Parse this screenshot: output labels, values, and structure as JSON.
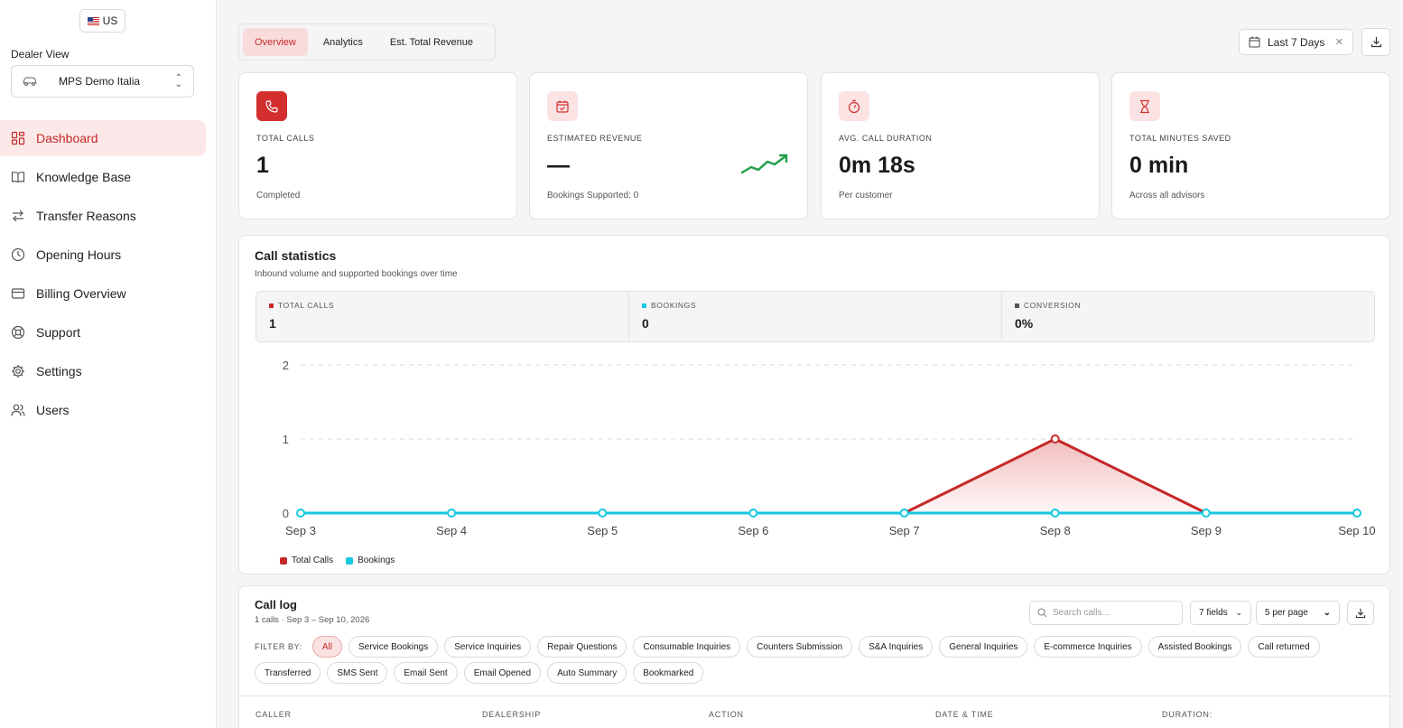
{
  "locale": {
    "label": "US"
  },
  "sidebar": {
    "dealer_label": "Dealer View",
    "dealer_name": "MPS Demo Italia",
    "items": [
      {
        "label": "Dashboard",
        "icon": "dashboard-icon"
      },
      {
        "label": "Knowledge Base",
        "icon": "book-icon"
      },
      {
        "label": "Transfer Reasons",
        "icon": "transfer-icon"
      },
      {
        "label": "Opening Hours",
        "icon": "clock-icon"
      },
      {
        "label": "Billing Overview",
        "icon": "card-icon"
      },
      {
        "label": "Support",
        "icon": "lifebuoy-icon"
      },
      {
        "label": "Settings",
        "icon": "gear-icon"
      },
      {
        "label": "Users",
        "icon": "users-icon"
      }
    ]
  },
  "tabs": [
    "Overview",
    "Analytics",
    "Est. Total Revenue"
  ],
  "date_range": "Last 7 Days",
  "stats": [
    {
      "label": "TOTAL CALLS",
      "value": "1",
      "sub": "Completed"
    },
    {
      "label": "ESTIMATED REVENUE",
      "value": "—",
      "sub": "Bookings Supported: 0"
    },
    {
      "label": "AVG. CALL DURATION",
      "value": "0m 18s",
      "sub": "Per customer"
    },
    {
      "label": "TOTAL MINUTES SAVED",
      "value": "0 min",
      "sub": "Across all advisors"
    }
  ],
  "call_stats": {
    "title": "Call statistics",
    "subtitle": "Inbound volume and supported bookings over time",
    "summary": [
      {
        "label": "TOTAL CALLS",
        "value": "1",
        "color": "#c62828"
      },
      {
        "label": "BOOKINGS",
        "value": "0",
        "color": "#16c8e0"
      },
      {
        "label": "CONVERSION",
        "value": "0%",
        "color": "#555555"
      }
    ]
  },
  "chart_data": {
    "type": "line",
    "categories": [
      "Sep 3",
      "Sep 4",
      "Sep 5",
      "Sep 6",
      "Sep 7",
      "Sep 8",
      "Sep 9",
      "Sep 10"
    ],
    "series": [
      {
        "name": "Total Calls",
        "values": [
          0,
          0,
          0,
          0,
          0,
          1,
          0,
          0
        ],
        "color": "#c62828"
      },
      {
        "name": "Bookings",
        "values": [
          0,
          0,
          0,
          0,
          0,
          0,
          0,
          0
        ],
        "color": "#16c8e0"
      }
    ],
    "yticks": [
      0,
      1,
      2
    ],
    "ylim": [
      0,
      2
    ],
    "grid": true,
    "legend": "bottom-left"
  },
  "call_log": {
    "title": "Call log",
    "subtitle": "1 calls · Sep 3 – Sep 10, 2026",
    "search_placeholder": "Search calls...",
    "fields_label": "7 fields",
    "per_page": "5 per page",
    "filter_label": "FILTER BY:",
    "filters": [
      "All",
      "Service Bookings",
      "Service Inquiries",
      "Repair Questions",
      "Consumable Inquiries",
      "Counters Submission",
      "S&A Inquiries",
      "General Inquiries",
      "E-commerce Inquiries",
      "Assisted Bookings",
      "Call returned",
      "Transferred",
      "SMS Sent",
      "Email Sent",
      "Email Opened",
      "Auto Summary",
      "Bookmarked"
    ],
    "columns": [
      "CALLER",
      "DEALERSHIP",
      "ACTION",
      "DATE & TIME",
      "DURATION:"
    ]
  }
}
